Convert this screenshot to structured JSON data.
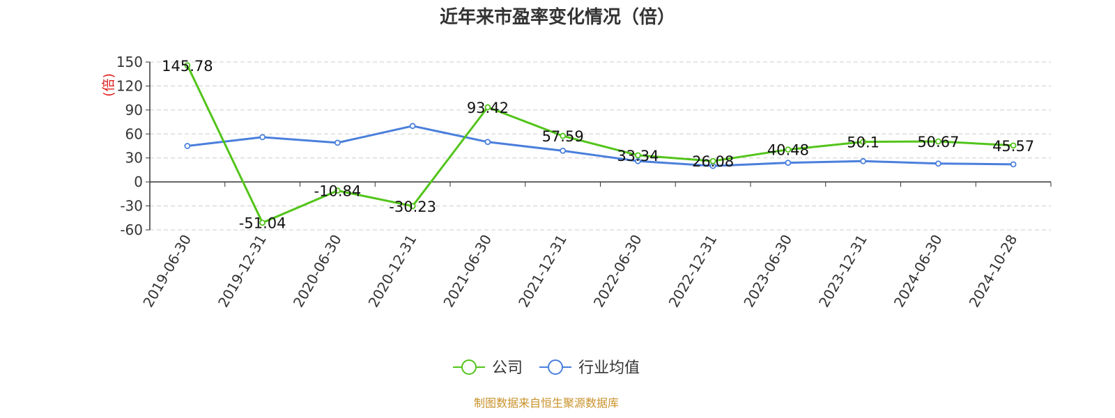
{
  "chart_data": {
    "type": "line",
    "title": "近年来市盈率变化情况（倍）",
    "ylabel": "(倍)",
    "ylim": [
      -60,
      150
    ],
    "yticks": [
      150,
      120,
      90,
      60,
      30,
      0,
      -30,
      -60
    ],
    "grid": true,
    "legend_position": "bottom",
    "categories": [
      "2019-06-30",
      "2019-12-31",
      "2020-06-30",
      "2020-12-31",
      "2021-06-30",
      "2021-12-31",
      "2022-06-30",
      "2022-12-31",
      "2023-06-30",
      "2023-12-31",
      "2024-06-30",
      "2024-10-28"
    ],
    "series": [
      {
        "name": "公司",
        "color": "#52c41a",
        "values": [
          145.78,
          -51.04,
          -10.84,
          -30.23,
          93.42,
          57.59,
          33.34,
          26.08,
          40.48,
          50.1,
          50.67,
          45.57
        ],
        "labels": [
          "145.78",
          "-51.04",
          "-10.84",
          "-30.23",
          "93.42",
          "57.59",
          "33.34",
          "26.08",
          "40.48",
          "50.1",
          "50.67",
          "45.57"
        ]
      },
      {
        "name": "行业均值",
        "color": "#4a7fdc",
        "values": [
          45,
          56,
          49,
          70,
          50,
          39,
          26,
          20,
          24,
          26,
          23,
          22
        ]
      }
    ],
    "source": "制图数据来自恒生聚源数据库"
  }
}
